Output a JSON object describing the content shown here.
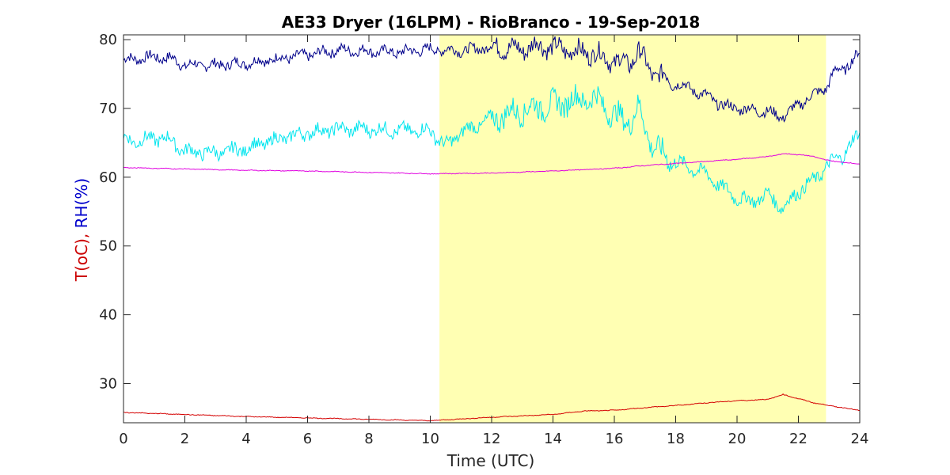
{
  "chart_data": {
    "type": "line",
    "title": "AE33 Dryer (16LPM)  - RioBranco - 19-Sep-2018",
    "xlabel": "Time (UTC)",
    "ylabel_parts": [
      {
        "text": "T(oC),",
        "color": "#cc0000"
      },
      {
        "text": " RH(%)",
        "color": "#0000cc"
      }
    ],
    "xlim": [
      0,
      24
    ],
    "ylim": [
      24.3,
      80.7
    ],
    "xticks": [
      0,
      2,
      4,
      6,
      8,
      10,
      12,
      14,
      16,
      18,
      20,
      22,
      24
    ],
    "yticks": [
      30,
      40,
      50,
      60,
      70,
      80
    ],
    "grid": false,
    "highlight_band": {
      "x0": 10.3,
      "x1": 22.9,
      "color": "#ffffb3"
    },
    "series": [
      {
        "color": "#00008b",
        "x": [
          0,
          0.5,
          1,
          1.5,
          2,
          3,
          4,
          5,
          6,
          7,
          8,
          9,
          10,
          11,
          12,
          13,
          13.5,
          14,
          15,
          15.5,
          16,
          16.5,
          16.8,
          17.2,
          17.5,
          18,
          19,
          19.5,
          20,
          20.5,
          21,
          21.5,
          22,
          22.5,
          22.9,
          23.2,
          23.5,
          24
        ],
        "y": [
          77,
          77.3,
          77.5,
          77.3,
          76.3,
          76.3,
          76.6,
          77.2,
          77.8,
          78.5,
          78.3,
          78.2,
          78.6,
          78.4,
          78.9,
          78.6,
          79.2,
          78.8,
          78.2,
          77.8,
          76.8,
          76.6,
          78.3,
          75.3,
          74.8,
          73.8,
          71.8,
          70.5,
          70,
          69.8,
          69.5,
          68.8,
          70.5,
          72,
          73,
          75.5,
          75.8,
          78
        ]
      },
      {
        "color": "#00e5ee",
        "x": [
          0,
          0.5,
          1,
          1.5,
          2,
          3,
          4,
          5,
          6,
          7,
          8,
          9,
          10,
          10.5,
          11,
          12,
          13,
          14,
          15,
          15.5,
          16,
          16.5,
          16.8,
          17.2,
          17.5,
          18,
          19,
          19.5,
          20,
          20.5,
          21,
          21.5,
          22,
          22.5,
          22.9,
          23.2,
          23.5,
          24
        ],
        "y": [
          65.5,
          65.3,
          65.7,
          65.5,
          63.8,
          63.5,
          64.2,
          65.5,
          66.5,
          67,
          67,
          66.8,
          66.8,
          64.5,
          66.5,
          68.5,
          69.8,
          70.5,
          71.5,
          71.2,
          68.8,
          68.2,
          70,
          65,
          63.5,
          62.2,
          60.5,
          58.5,
          57,
          56.5,
          57.5,
          55.5,
          58,
          59.5,
          61.5,
          62.5,
          63.5,
          66.5
        ]
      },
      {
        "color": "#e000e0",
        "x": [
          0,
          2,
          4,
          6,
          8,
          10,
          12,
          14,
          16,
          17,
          18,
          19,
          20,
          21,
          21.5,
          22,
          22.5,
          23,
          24
        ],
        "y": [
          61.4,
          61.2,
          61,
          60.9,
          60.7,
          60.5,
          60.6,
          60.9,
          61.3,
          61.7,
          62,
          62.3,
          62.6,
          63,
          63.4,
          63.3,
          63,
          62.4,
          61.9
        ]
      },
      {
        "color": "#d40000",
        "x": [
          0,
          2,
          4,
          6,
          8,
          10,
          12,
          14,
          15,
          16,
          17,
          18,
          19,
          20,
          21,
          21.5,
          22,
          22.5,
          23,
          24
        ],
        "y": [
          25.8,
          25.5,
          25.2,
          25,
          24.8,
          24.6,
          25.1,
          25.5,
          26,
          26.1,
          26.5,
          26.8,
          27.2,
          27.5,
          27.7,
          28.4,
          27.8,
          27.2,
          26.8,
          26.1
        ]
      }
    ]
  }
}
